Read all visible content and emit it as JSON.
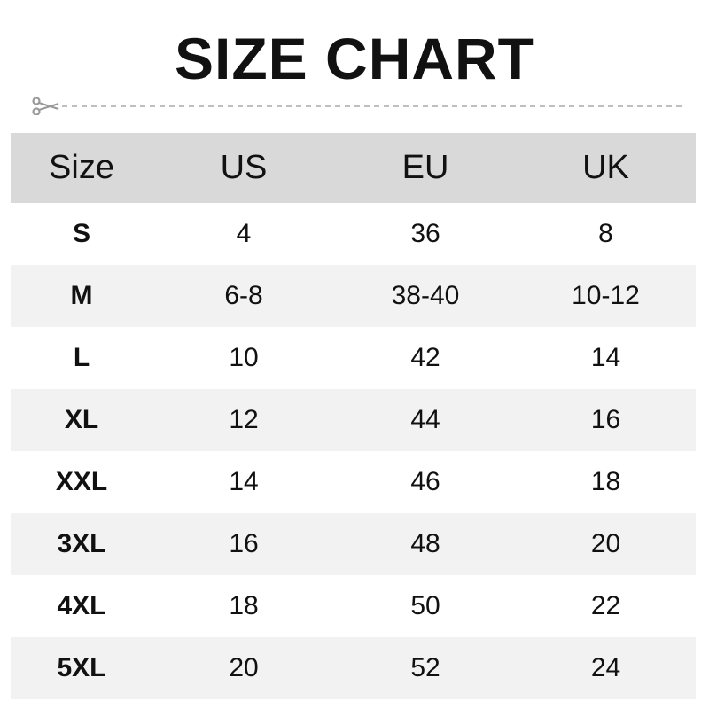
{
  "title": "SIZE CHART",
  "icons": {
    "cut": "scissors-icon"
  },
  "colors": {
    "header_bg": "#d9d9d9",
    "alt_row_bg": "#f2f2f2",
    "cutline": "#aaaaaa"
  },
  "table": {
    "headers": [
      "Size",
      "US",
      "EU",
      "UK"
    ],
    "rows": [
      [
        "S",
        "4",
        "36",
        "8"
      ],
      [
        "M",
        "6-8",
        "38-40",
        "10-12"
      ],
      [
        "L",
        "10",
        "42",
        "14"
      ],
      [
        "XL",
        "12",
        "44",
        "16"
      ],
      [
        "XXL",
        "14",
        "46",
        "18"
      ],
      [
        "3XL",
        "16",
        "48",
        "20"
      ],
      [
        "4XL",
        "18",
        "50",
        "22"
      ],
      [
        "5XL",
        "20",
        "52",
        "24"
      ]
    ]
  }
}
